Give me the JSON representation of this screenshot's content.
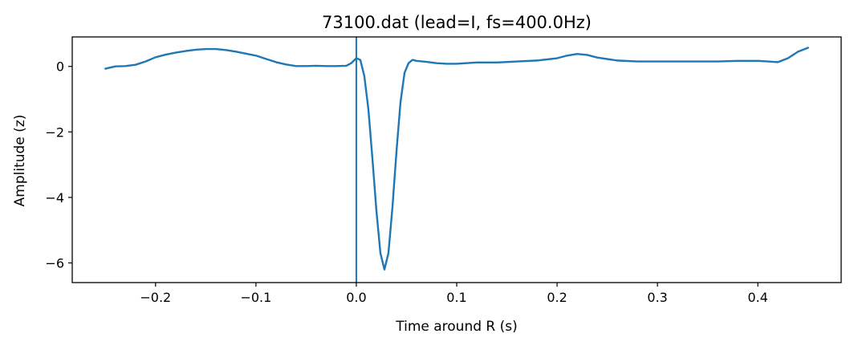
{
  "chart_data": {
    "type": "line",
    "title": "73100.dat (lead=I, fs=400.0Hz)",
    "xlabel": "Time around R (s)",
    "ylabel": "Amplitude (z)",
    "xlim": [
      -0.283,
      0.483
    ],
    "ylim": [
      -6.6,
      0.9
    ],
    "xticks": [
      -0.2,
      -0.1,
      0.0,
      0.1,
      0.2,
      0.3,
      0.4
    ],
    "xtick_labels": [
      "−0.2",
      "−0.1",
      "0.0",
      "0.1",
      "0.2",
      "0.3",
      "0.4"
    ],
    "yticks": [
      0,
      -2,
      -4,
      -6
    ],
    "ytick_labels": [
      "0",
      "−2",
      "−4",
      "−6"
    ],
    "grid": false,
    "vline_x": 0.0,
    "line_color": "#1f77b4",
    "series": [
      {
        "x": [
          -0.25,
          -0.24,
          -0.23,
          -0.22,
          -0.21,
          -0.2,
          -0.19,
          -0.18,
          -0.17,
          -0.16,
          -0.15,
          -0.14,
          -0.13,
          -0.12,
          -0.11,
          -0.1,
          -0.09,
          -0.08,
          -0.07,
          -0.06,
          -0.05,
          -0.04,
          -0.03,
          -0.02,
          -0.01,
          -0.005,
          0.0,
          0.004,
          0.008,
          0.012,
          0.016,
          0.02,
          0.024,
          0.028,
          0.032,
          0.036,
          0.04,
          0.044,
          0.048,
          0.052,
          0.056,
          0.06,
          0.07,
          0.08,
          0.09,
          0.1,
          0.12,
          0.14,
          0.16,
          0.18,
          0.2,
          0.21,
          0.22,
          0.23,
          0.24,
          0.26,
          0.28,
          0.3,
          0.32,
          0.34,
          0.36,
          0.38,
          0.4,
          0.41,
          0.42,
          0.43,
          0.44,
          0.45
        ],
        "y": [
          -0.07,
          0.0,
          0.01,
          0.05,
          0.15,
          0.28,
          0.36,
          0.42,
          0.47,
          0.51,
          0.53,
          0.53,
          0.5,
          0.45,
          0.39,
          0.33,
          0.23,
          0.13,
          0.06,
          0.01,
          0.01,
          0.02,
          0.01,
          0.01,
          0.02,
          0.1,
          0.25,
          0.2,
          -0.3,
          -1.3,
          -2.8,
          -4.4,
          -5.7,
          -6.2,
          -5.7,
          -4.3,
          -2.6,
          -1.1,
          -0.2,
          0.1,
          0.2,
          0.17,
          0.14,
          0.1,
          0.08,
          0.08,
          0.12,
          0.12,
          0.15,
          0.18,
          0.25,
          0.33,
          0.38,
          0.35,
          0.27,
          0.18,
          0.15,
          0.15,
          0.15,
          0.15,
          0.15,
          0.17,
          0.17,
          0.15,
          0.13,
          0.25,
          0.45,
          0.57
        ]
      }
    ]
  }
}
